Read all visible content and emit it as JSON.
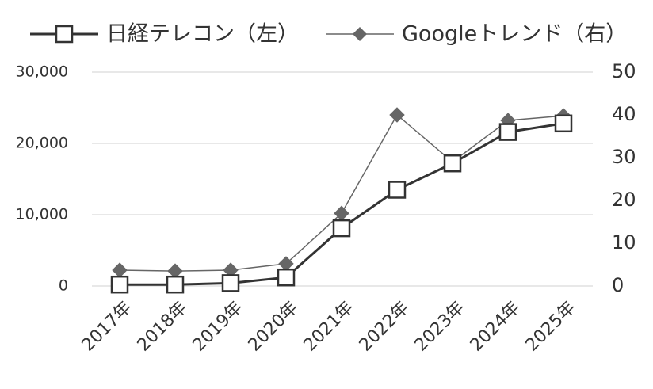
{
  "chart_data": {
    "type": "line",
    "categories": [
      "2017年",
      "2018年",
      "2019年",
      "2020年",
      "2021年",
      "2022年",
      "2023年",
      "2024年",
      "2025年"
    ],
    "series": [
      {
        "name": "日経テレコン（左）",
        "color": "#333333",
        "marker": "square",
        "values": [
          200,
          200,
          400,
          1200,
          8100,
          13500,
          17200,
          21600,
          22800
        ]
      },
      {
        "name": "Googleトレンド（右）",
        "color": "#666666",
        "marker": "diamond",
        "axis": "y2",
        "values": [
          3.7,
          3.5,
          3.7,
          5.2,
          17,
          40,
          29,
          38.7,
          39.8
        ]
      }
    ],
    "ylim": [
      0,
      30000
    ],
    "yticks": [
      0,
      {
        "value": 10000,
        "label": "10,000"
      },
      {
        "value": 20000,
        "label": "20,000"
      },
      {
        "value": 30000,
        "label": "30,000"
      }
    ],
    "y2lim": [
      0,
      50
    ],
    "y2ticks": [
      0,
      10,
      20,
      30,
      40,
      50
    ],
    "grid": true,
    "legend": "top"
  }
}
